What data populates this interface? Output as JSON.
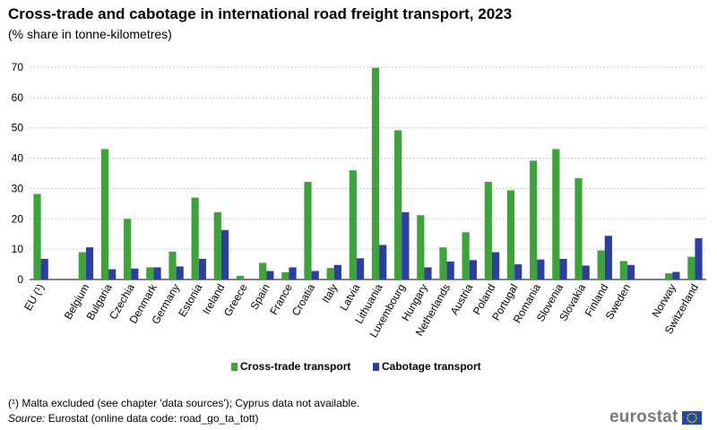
{
  "title": "Cross-trade and cabotage in international road freight transport, 2023",
  "subtitle": "(% share in tonne-kilometres)",
  "chart_data": {
    "type": "bar",
    "categories": [
      "EU (¹)",
      "",
      "Belgium",
      "Bulgaria",
      "Czechia",
      "Denmark",
      "Germany",
      "Estonia",
      "Ireland",
      "Greece",
      "Spain",
      "France",
      "Croatia",
      "Italy",
      "Latvia",
      "Lithuania",
      "Luxembourg",
      "Hungary",
      "Netherlands",
      "Austria",
      "Poland",
      "Portugal",
      "Romania",
      "Slovenia",
      "Slovakia",
      "Finland",
      "Sweden",
      "",
      "Norway",
      "Switzerland"
    ],
    "series": [
      {
        "name": "Cross-trade transport",
        "color": "#3ea33a",
        "values": [
          28.2,
          null,
          9.0,
          43.0,
          20.0,
          4.0,
          9.2,
          27.0,
          22.2,
          1.2,
          5.5,
          2.4,
          32.2,
          3.8,
          36.0,
          69.8,
          49.2,
          21.2,
          10.6,
          15.6,
          32.2,
          29.4,
          39.2,
          43.0,
          33.4,
          9.6,
          6.1,
          null,
          2.0,
          7.5
        ]
      },
      {
        "name": "Cabotage transport",
        "color": "#2c3e9e",
        "values": [
          6.8,
          null,
          10.6,
          3.4,
          3.6,
          4.0,
          4.3,
          6.8,
          16.3,
          0.0,
          2.8,
          4.0,
          2.8,
          4.8,
          7.0,
          11.4,
          22.2,
          4.0,
          5.9,
          6.4,
          9.0,
          5.0,
          6.6,
          6.8,
          4.6,
          14.4,
          4.8,
          null,
          2.5,
          13.6
        ]
      }
    ],
    "yticks": [
      "0",
      "10",
      "20",
      "30",
      "40",
      "50",
      "60",
      "70"
    ],
    "ylim": [
      0,
      70
    ],
    "grid": true,
    "legend": "bottom-center",
    "xlabel": "",
    "ylabel": ""
  },
  "footnote": "(¹) Malta excluded (see chapter 'data sources'); Cyprus data not available.",
  "source_label": "Source:",
  "source_text": " Eurostat (online data code: road_go_ta_tott)",
  "logo_text": "eurostat"
}
